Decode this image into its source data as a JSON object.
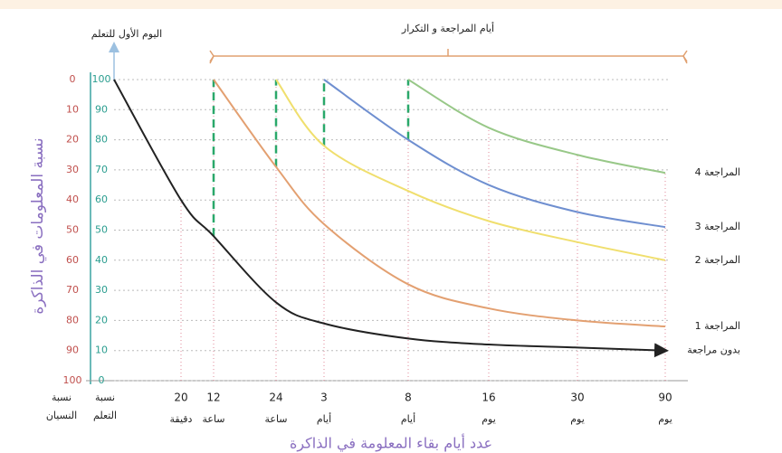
{
  "chart_data": {
    "type": "line",
    "title": "أيام المراجعة و التكرار",
    "annotation": "اليوم الأول للتعلم",
    "x_label": "عدد أيام بقاء المعلومة في الذاكرة",
    "y_label": "نسبة المعلومات في الذاكرة",
    "y_axis_title": "نسبة التعلم",
    "y2_axis_title": "نسبة النسيان",
    "categories": [
      null,
      "20",
      "12",
      "24",
      "3",
      "8",
      "16",
      "30",
      "90"
    ],
    "category_units": [
      null,
      "دقيقة",
      "ساعة",
      "ساعة",
      "أيام",
      "أيام",
      "يوم",
      "يوم",
      "يوم"
    ],
    "ylim": [
      0,
      100
    ],
    "yticks": [
      0,
      10,
      20,
      30,
      40,
      50,
      60,
      70,
      80,
      90,
      100
    ],
    "y2lim": [
      100,
      0
    ],
    "y2ticks": [
      0,
      10,
      20,
      30,
      40,
      50,
      60,
      70,
      80,
      90,
      100
    ],
    "grid": true,
    "series": [
      {
        "name": "بدون مراجعة",
        "color": "#222222",
        "values": [
          100,
          60,
          48,
          26,
          19,
          14,
          12,
          11,
          10
        ]
      },
      {
        "name": "المراجعة 1",
        "color": "#e3a071",
        "values": [
          null,
          null,
          100,
          71,
          52,
          32,
          24,
          20,
          18
        ]
      },
      {
        "name": "المراجعة 2",
        "color": "#f0df6e",
        "values": [
          null,
          null,
          null,
          100,
          78,
          63,
          53,
          46,
          40
        ]
      },
      {
        "name": "المراجعة 3",
        "color": "#6f8fd0",
        "values": [
          null,
          null,
          null,
          null,
          100,
          80,
          65,
          56,
          51
        ]
      },
      {
        "name": "المراجعة 4",
        "color": "#98c888",
        "values": [
          null,
          null,
          null,
          null,
          null,
          100,
          84,
          75,
          69
        ]
      }
    ]
  }
}
